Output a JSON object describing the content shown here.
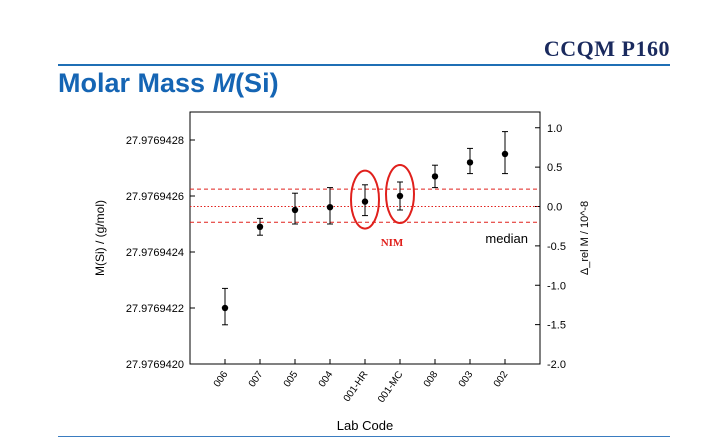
{
  "header": {
    "brand": "CCQM P160",
    "title_prefix": "Molar Mass ",
    "title_symbol": "M",
    "title_suffix": "(Si)"
  },
  "chart_data": {
    "type": "scatter",
    "xlabel": "Lab Code",
    "ylabel_left": "M(Si) / (g/mol)",
    "ylabel_right": "Δ_rel M / 10^-8",
    "categories": [
      "006",
      "007",
      "005",
      "004",
      "001-HR",
      "001-MC",
      "008",
      "003",
      "002"
    ],
    "values": [
      27.9769422,
      27.97694249,
      27.97694255,
      27.97694256,
      27.97694258,
      27.9769426,
      27.97694267,
      27.97694272,
      27.97694275
    ],
    "err_upper": [
      27.97694227,
      27.97694252,
      27.97694261,
      27.97694263,
      27.97694264,
      27.97694265,
      27.97694271,
      27.97694277,
      27.97694283
    ],
    "err_lower": [
      27.97694214,
      27.97694246,
      27.9769425,
      27.9769425,
      27.97694253,
      27.97694255,
      27.97694263,
      27.97694268,
      27.97694268
    ],
    "ylim_left": [
      27.976942,
      27.9769429
    ],
    "yticks_left": [
      "27.9769420",
      "27.9769422",
      "27.9769424",
      "27.9769426",
      "27.9769428"
    ],
    "ylim_right": [
      -2.0,
      1.2
    ],
    "yticks_right": [
      "1.0",
      "0.5",
      "0.0",
      "-0.5",
      "-1.0",
      "-1.5",
      "-2.0"
    ],
    "median_right": 0.0,
    "band_right": [
      -0.2,
      0.22
    ],
    "median_label": "median",
    "highlight_label": "NIM",
    "highlighted": [
      "001-HR",
      "001-MC"
    ],
    "grid": false,
    "colors": {
      "points": "#000000",
      "median_lines": "#e0201c",
      "highlight": "#e0201c"
    }
  }
}
